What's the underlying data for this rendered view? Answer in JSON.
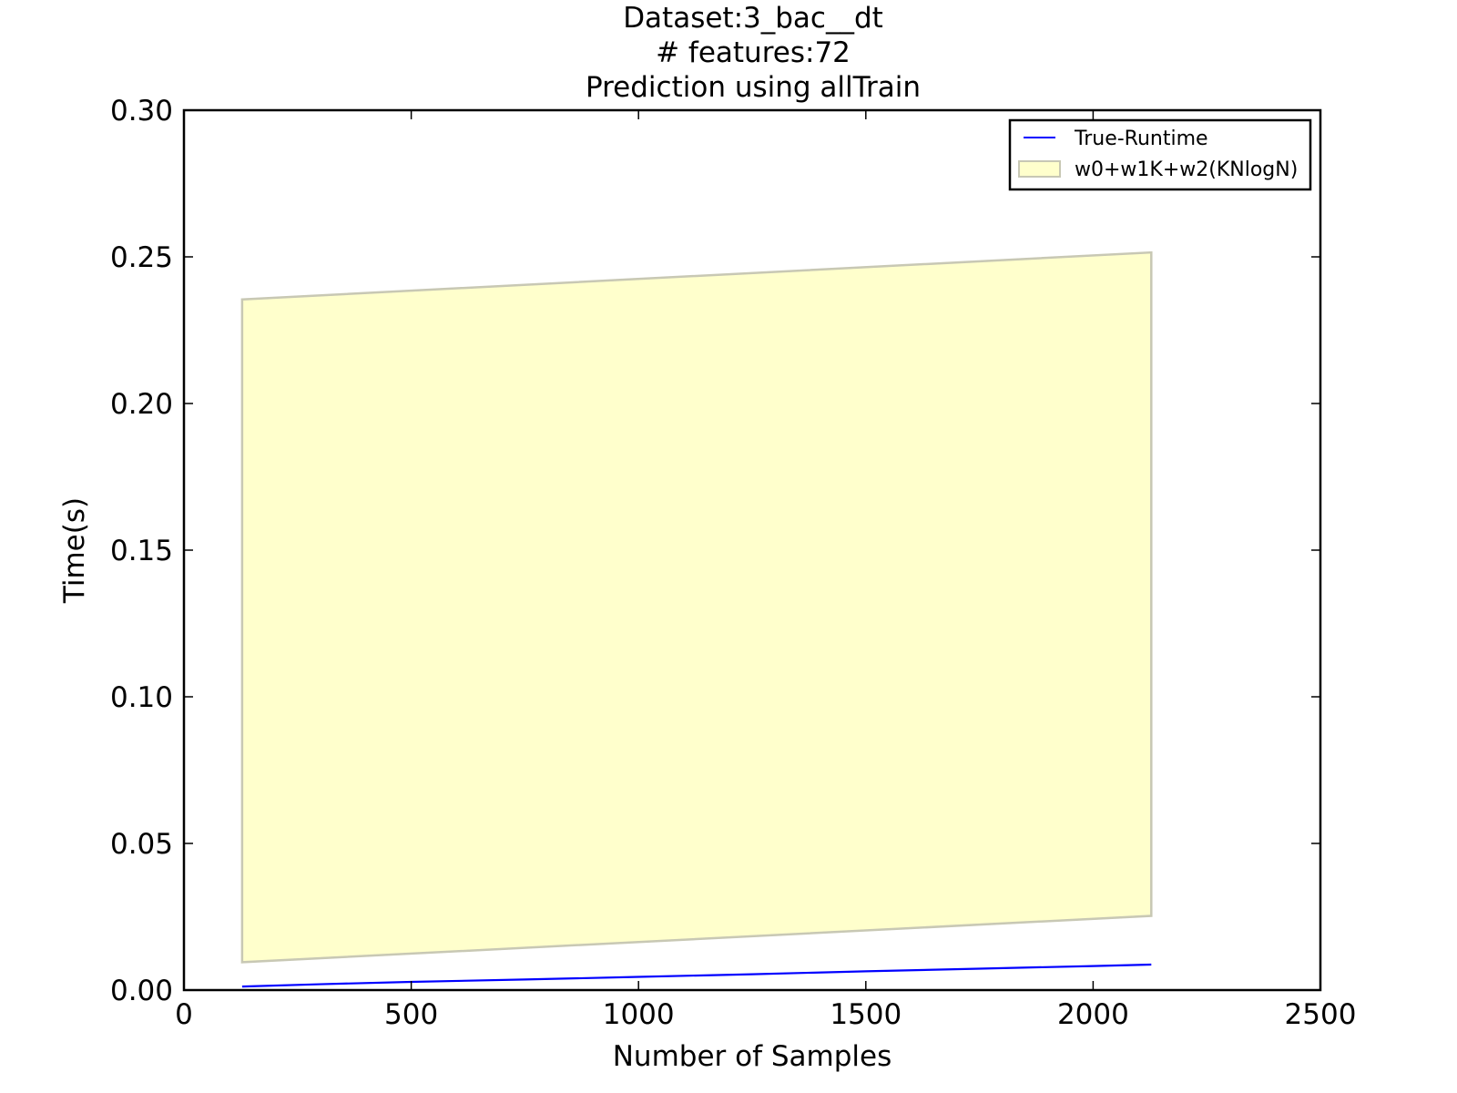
{
  "chart_data": {
    "type": "area",
    "title": [
      "Dataset:3_bac__dt",
      "# features:72",
      "Prediction using allTrain"
    ],
    "xlabel": "Number of Samples",
    "ylabel": "Time(s)",
    "xlim": [
      0,
      2500
    ],
    "ylim": [
      0,
      0.3
    ],
    "xticks": [
      "0",
      "500",
      "1000",
      "1500",
      "2000",
      "2500"
    ],
    "yticks": [
      "0.00",
      "0.05",
      "0.10",
      "0.15",
      "0.20",
      "0.25",
      "0.30"
    ],
    "grid": false,
    "legend_position": "top-right",
    "series": [
      {
        "name": "True-Runtime",
        "kind": "line",
        "color": "#0000ff",
        "x": [
          128,
          300,
          500,
          750,
          1000,
          1250,
          1500,
          1750,
          2000,
          2128
        ],
        "y": [
          0.0012,
          0.002,
          0.0028,
          0.0036,
          0.0045,
          0.0054,
          0.0064,
          0.0073,
          0.0082,
          0.0087
        ]
      },
      {
        "name": "w0+w1K+w2(KNlogN)",
        "kind": "band",
        "fill": "#ffffcc",
        "edge": "#c8c8b4",
        "x": [
          128,
          2128
        ],
        "lower": [
          0.0095,
          0.0253
        ],
        "upper": [
          0.2355,
          0.2515
        ]
      }
    ]
  }
}
